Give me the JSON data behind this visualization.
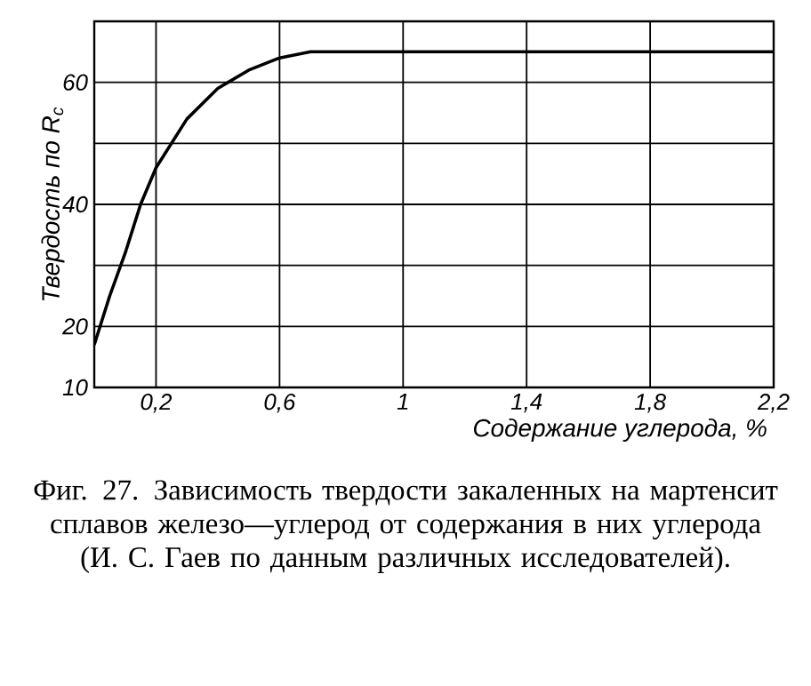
{
  "chart_data": {
    "type": "line",
    "xlabel": "Содержание углерода, %",
    "ylabel": "Твердость по R$_{c}$",
    "annotations": [
      "Фиг. 27. Зависимость твердости закаленных на мартенсит сплавов железо—углерод от содержания в них углерода (И. С. Гаев по данным различных исследователей)."
    ],
    "x": [
      0,
      0.05,
      0.1,
      0.15,
      0.2,
      0.3,
      0.4,
      0.5,
      0.6,
      0.7,
      0.75,
      2.2
    ],
    "values": [
      17,
      25,
      32,
      40,
      46,
      54,
      59,
      62,
      64,
      65,
      65,
      65
    ],
    "color": "#000000",
    "xlim": [
      0,
      2.2
    ],
    "ylim": [
      10,
      70
    ],
    "xticks": [
      {
        "value": 0.2,
        "label": "0,2"
      },
      {
        "value": 0.6,
        "label": "0,6"
      },
      {
        "value": 1,
        "label": "1"
      },
      {
        "value": 1.4,
        "label": "1,4"
      },
      {
        "value": 1.8,
        "label": "1,8"
      },
      {
        "value": 2.2,
        "label": "2,2"
      }
    ],
    "yticks": [
      10,
      20,
      {
        "value": 30,
        "label": null
      },
      40,
      {
        "value": 50,
        "label": null
      },
      60
    ],
    "grid": true
  }
}
